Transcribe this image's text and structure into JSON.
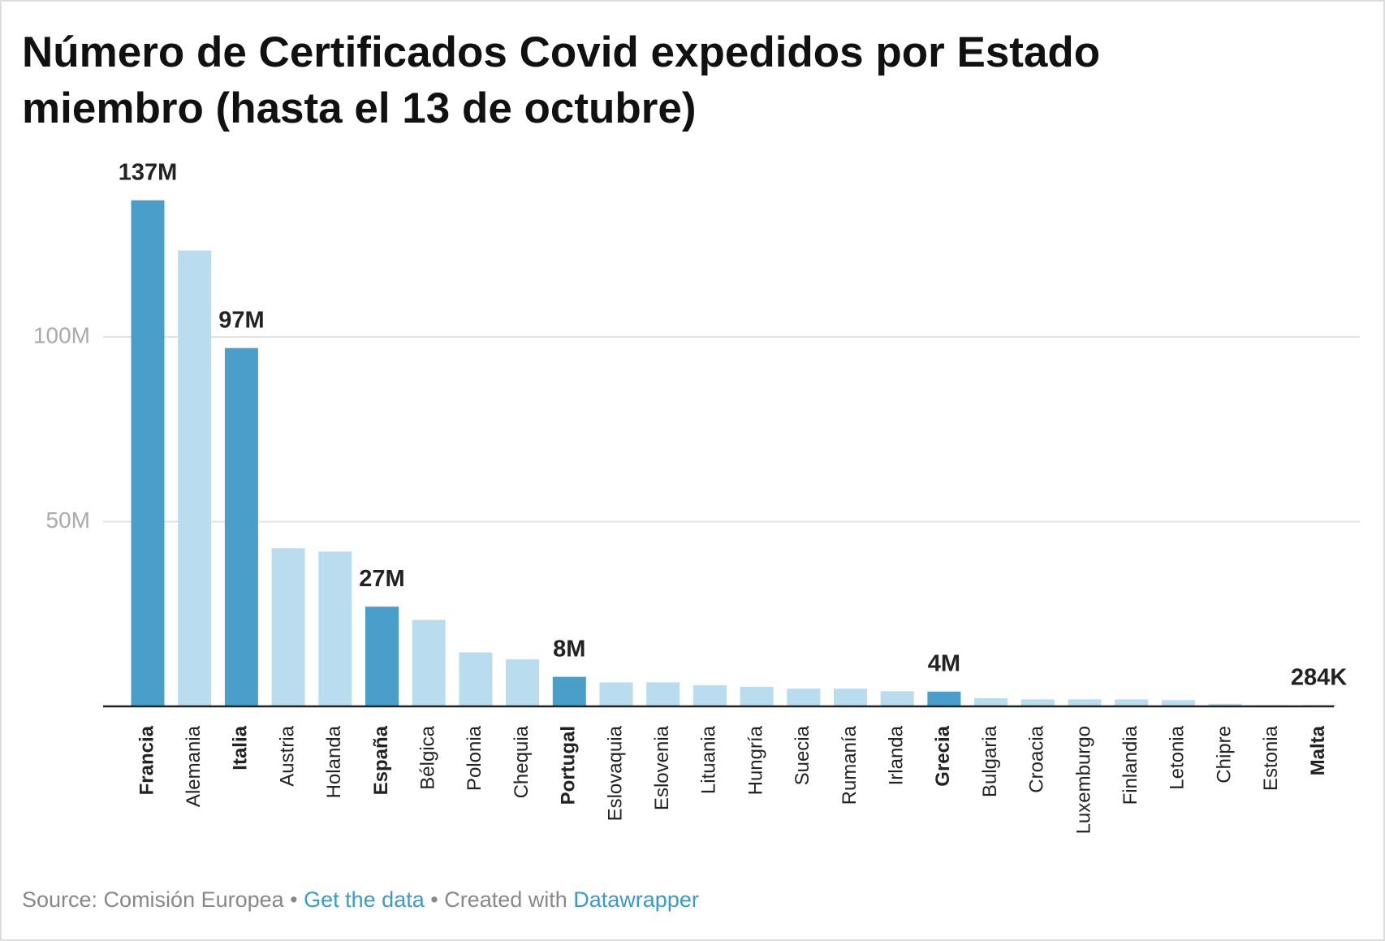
{
  "chart_data": {
    "type": "bar",
    "title": "Número de Certificados Covid expedidos por Estado miembro (hasta el 13 de octubre)",
    "categories": [
      "Francia",
      "Alemania",
      "Italia",
      "Austria",
      "Holanda",
      "España",
      "Bélgica",
      "Polonia",
      "Chequia",
      "Portugal",
      "Eslovaquia",
      "Eslovenia",
      "Lituania",
      "Hungría",
      "Suecia",
      "Rumanía",
      "Irlanda",
      "Grecia",
      "Bulgaria",
      "Croacia",
      "Luxemburgo",
      "Finlandia",
      "Letonia",
      "Chipre",
      "Estonia",
      "Malta"
    ],
    "values": [
      137,
      123.4,
      97,
      42.8,
      41.9,
      27,
      23.4,
      14.6,
      12.7,
      8,
      6.5,
      6.5,
      5.7,
      5.3,
      4.8,
      4.8,
      4.1,
      4,
      2.2,
      1.9,
      1.9,
      1.9,
      1.7,
      0.7,
      0.3,
      0.284
    ],
    "value_labels": [
      "137M",
      null,
      "97M",
      null,
      null,
      "27M",
      null,
      null,
      null,
      "8M",
      null,
      null,
      null,
      null,
      null,
      null,
      null,
      "4M",
      null,
      null,
      null,
      null,
      null,
      null,
      null,
      "284K"
    ],
    "highlighted": [
      true,
      false,
      true,
      false,
      false,
      true,
      false,
      false,
      false,
      true,
      false,
      false,
      false,
      false,
      false,
      false,
      false,
      true,
      false,
      false,
      false,
      false,
      false,
      false,
      false,
      true
    ],
    "color": "#b9ddee",
    "highlight_color": "#4a9fca",
    "ylim": [
      0,
      140
    ],
    "yticks": [
      {
        "value": 50,
        "label": "50M"
      },
      {
        "value": 100,
        "label": "100M"
      }
    ],
    "grid": true,
    "footer": {
      "source": "Source: Comisión Europea • ",
      "data_link": "Get the data",
      "created": " • Created with ",
      "tool_link": "Datawrapper"
    }
  }
}
